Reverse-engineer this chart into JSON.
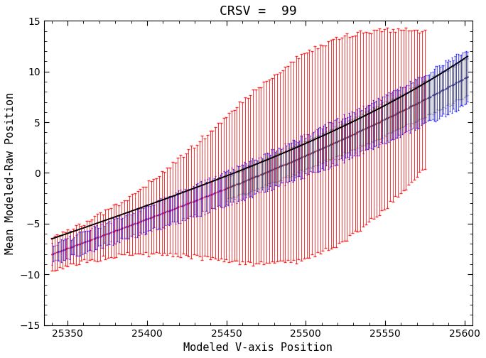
{
  "title": "CRSV =  99",
  "xlabel": "Modeled V-axis Position",
  "ylabel": "Mean Modeled-Raw Position",
  "xlim": [
    25335,
    25605
  ],
  "ylim": [
    -15,
    15
  ],
  "xticks": [
    25350,
    25400,
    25450,
    25500,
    25550,
    25600
  ],
  "yticks": [
    -15,
    -10,
    -5,
    0,
    5,
    10,
    15
  ],
  "x_start": 25340,
  "x_end": 25602,
  "n_blue": 260,
  "n_red": 140,
  "background_color": "#ffffff",
  "title_fontsize": 13,
  "axis_fontsize": 11,
  "tick_fontsize": 10
}
